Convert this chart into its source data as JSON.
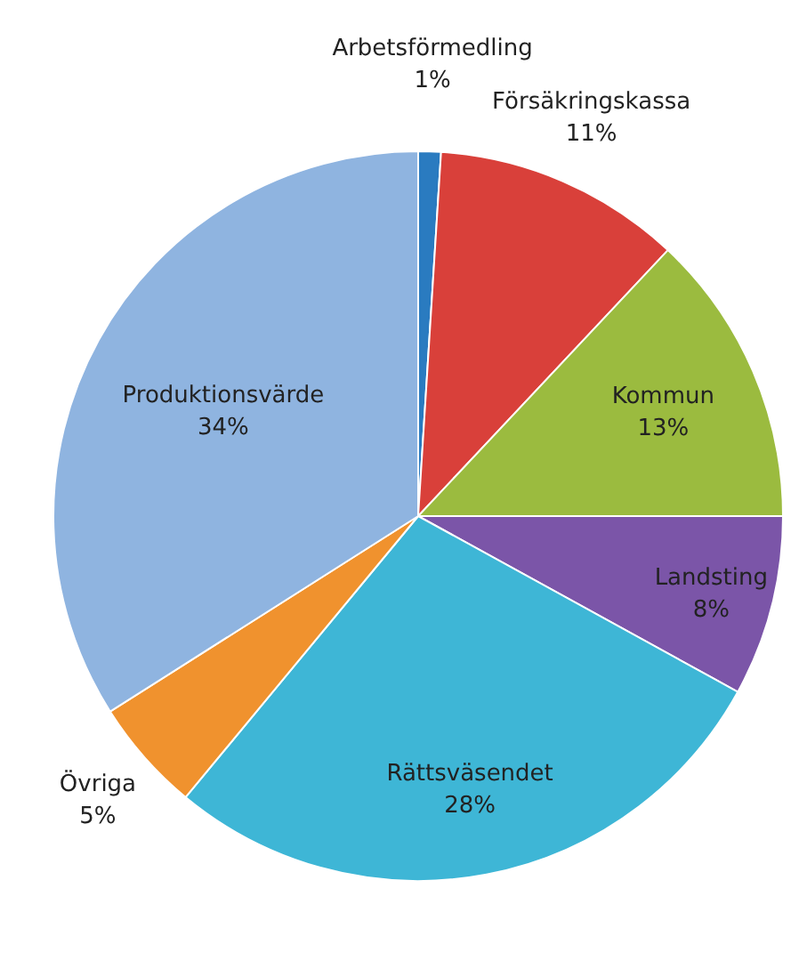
{
  "chart_data": {
    "type": "pie",
    "categories": [
      "Arbetsförmedling",
      "Försäkringskassa",
      "Kommun",
      "Landsting",
      "Rättsväsendet",
      "Övriga",
      "Produktionsvärde"
    ],
    "values": [
      1,
      11,
      13,
      8,
      28,
      5,
      34
    ],
    "value_labels": [
      "1%",
      "11%",
      "13%",
      "8%",
      "28%",
      "5%",
      "34%"
    ],
    "colors": [
      "#2a7bc0",
      "#d9403a",
      "#9bbb3f",
      "#7b55a8",
      "#3eb6d6",
      "#f0922e",
      "#8fb4e0"
    ]
  }
}
